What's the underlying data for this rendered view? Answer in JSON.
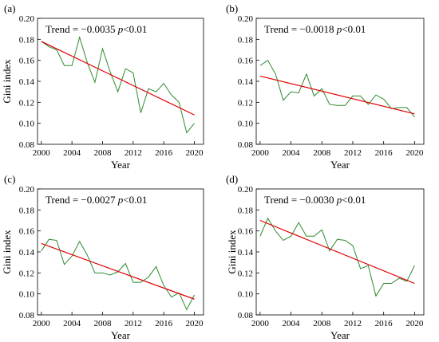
{
  "chart_data": [
    {
      "type": "line",
      "panel_label": "(a)",
      "trend_text": "Trend = −0.0035",
      "p_text": "p<0.01",
      "xlabel": "Year",
      "ylabel": "Gini index",
      "xlim": [
        1999.5,
        2021.2
      ],
      "ylim": [
        0.08,
        0.2
      ],
      "xticks": [
        2000,
        2004,
        2008,
        2012,
        2016,
        2020
      ],
      "yticks": [
        0.08,
        0.1,
        0.12,
        0.14,
        0.16,
        0.18,
        0.2
      ],
      "x": [
        2000,
        2001,
        2002,
        2003,
        2004,
        2005,
        2006,
        2007,
        2008,
        2009,
        2010,
        2011,
        2012,
        2013,
        2014,
        2015,
        2016,
        2017,
        2018,
        2019,
        2020
      ],
      "series": [
        {
          "values": [
            0.178,
            0.173,
            0.17,
            0.155,
            0.155,
            0.182,
            0.158,
            0.139,
            0.171,
            0.149,
            0.13,
            0.152,
            0.148,
            0.11,
            0.133,
            0.13,
            0.138,
            0.127,
            0.12,
            0.091,
            0.1
          ],
          "color": "#2e8b2e"
        },
        {
          "values": [
            0.178,
            0.108
          ],
          "x": [
            2000,
            2020
          ],
          "color": "#e00000"
        }
      ]
    },
    {
      "type": "line",
      "panel_label": "(b)",
      "trend_text": "Trend = −0.0018",
      "p_text": "p<0.01",
      "xlabel": "Year",
      "ylabel": "",
      "xlim": [
        1999.5,
        2021.2
      ],
      "ylim": [
        0.08,
        0.2
      ],
      "xticks": [
        2000,
        2004,
        2008,
        2012,
        2016,
        2020
      ],
      "yticks": [
        0.08,
        0.1,
        0.12,
        0.14,
        0.16,
        0.18,
        0.2
      ],
      "x": [
        2000,
        2001,
        2002,
        2003,
        2004,
        2005,
        2006,
        2007,
        2008,
        2009,
        2010,
        2011,
        2012,
        2013,
        2014,
        2015,
        2016,
        2017,
        2018,
        2019,
        2020
      ],
      "series": [
        {
          "values": [
            0.155,
            0.16,
            0.147,
            0.122,
            0.13,
            0.129,
            0.147,
            0.126,
            0.133,
            0.118,
            0.117,
            0.117,
            0.126,
            0.126,
            0.118,
            0.127,
            0.123,
            0.114,
            0.115,
            0.115,
            0.106
          ],
          "color": "#2e8b2e"
        },
        {
          "values": [
            0.145,
            0.109
          ],
          "x": [
            2000,
            2020
          ],
          "color": "#e00000"
        }
      ]
    },
    {
      "type": "line",
      "panel_label": "(c)",
      "trend_text": "Trend = −0.0027",
      "p_text": "p<0.01",
      "xlabel": "Year",
      "ylabel": "Gini index",
      "xlim": [
        1999.5,
        2021.2
      ],
      "ylim": [
        0.08,
        0.2
      ],
      "xticks": [
        2000,
        2004,
        2008,
        2012,
        2016,
        2020
      ],
      "yticks": [
        0.08,
        0.1,
        0.12,
        0.14,
        0.16,
        0.18,
        0.2
      ],
      "x": [
        2000,
        2001,
        2002,
        2003,
        2004,
        2005,
        2006,
        2007,
        2008,
        2009,
        2010,
        2011,
        2012,
        2013,
        2014,
        2015,
        2016,
        2017,
        2018,
        2019,
        2020
      ],
      "series": [
        {
          "values": [
            0.141,
            0.152,
            0.151,
            0.128,
            0.136,
            0.15,
            0.137,
            0.12,
            0.12,
            0.118,
            0.121,
            0.129,
            0.111,
            0.111,
            0.116,
            0.126,
            0.108,
            0.097,
            0.101,
            0.085,
            0.099
          ],
          "color": "#2e8b2e"
        },
        {
          "values": [
            0.148,
            0.095
          ],
          "x": [
            2000,
            2020
          ],
          "color": "#e00000"
        }
      ]
    },
    {
      "type": "line",
      "panel_label": "(d)",
      "trend_text": "Trend = −0.0030",
      "p_text": "p<0.01",
      "xlabel": "Year",
      "ylabel": "Gini index",
      "xlim": [
        1999.5,
        2021.2
      ],
      "ylim": [
        0.08,
        0.2
      ],
      "xticks": [
        2000,
        2004,
        2008,
        2012,
        2016,
        2020
      ],
      "yticks": [
        0.08,
        0.1,
        0.12,
        0.14,
        0.16,
        0.18,
        0.2
      ],
      "x": [
        2000,
        2001,
        2002,
        2003,
        2004,
        2005,
        2006,
        2007,
        2008,
        2009,
        2010,
        2011,
        2012,
        2013,
        2014,
        2015,
        2016,
        2017,
        2018,
        2019,
        2020
      ],
      "series": [
        {
          "values": [
            0.155,
            0.172,
            0.16,
            0.151,
            0.155,
            0.168,
            0.155,
            0.155,
            0.161,
            0.141,
            0.152,
            0.151,
            0.146,
            0.124,
            0.127,
            0.098,
            0.11,
            0.11,
            0.115,
            0.112,
            0.127
          ],
          "color": "#2e8b2e"
        },
        {
          "values": [
            0.17,
            0.11
          ],
          "x": [
            2000,
            2020
          ],
          "color": "#e00000"
        }
      ]
    }
  ]
}
